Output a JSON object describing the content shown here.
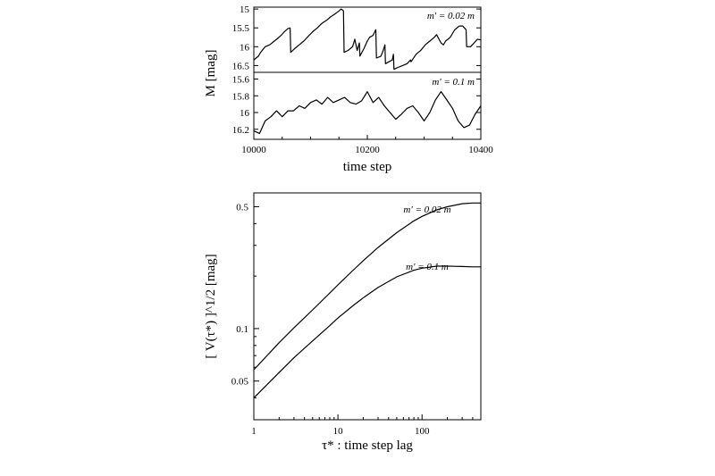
{
  "chart_data": [
    {
      "type": "line",
      "panel": "top-upper",
      "annotation": {
        "text": "m' = 0.02 m"
      },
      "ylabel": "M [mag]",
      "y_inverted": true,
      "xlim": [
        10000,
        10400
      ],
      "ylim": [
        16.68,
        14.95
      ],
      "yticks": [
        "15",
        "15.5",
        "16",
        "16.5"
      ],
      "series": [
        {
          "x": [
            10000,
            10008,
            10012,
            10020,
            10028,
            10036,
            10042,
            10048,
            10054,
            10060,
            10064,
            10065,
            10072,
            10080,
            10088,
            10096,
            10104,
            10112,
            10120,
            10128,
            10136,
            10144,
            10150,
            10154,
            10158,
            10159,
            10166,
            10174,
            10178,
            10182,
            10186,
            10187,
            10194,
            10200,
            10204,
            10210,
            10215,
            10216,
            10224,
            10228,
            10231,
            10232,
            10238,
            10244,
            10246,
            10247,
            10254,
            10262,
            10270,
            10276,
            10277,
            10286,
            10294,
            10302,
            10310,
            10318,
            10322,
            10330,
            10334,
            10338,
            10346,
            10350,
            10354,
            10362,
            10368,
            10374,
            10375,
            10382,
            10388,
            10394,
            10400
          ],
          "values": [
            16.35,
            16.25,
            16.15,
            16.0,
            15.95,
            15.85,
            15.78,
            15.7,
            15.6,
            15.52,
            15.5,
            16.15,
            16.05,
            15.95,
            15.85,
            15.72,
            15.6,
            15.5,
            15.38,
            15.3,
            15.2,
            15.12,
            15.05,
            15.0,
            15.05,
            16.15,
            16.1,
            16.0,
            15.8,
            16.1,
            15.9,
            16.25,
            16.05,
            15.85,
            15.75,
            15.7,
            15.55,
            16.3,
            16.25,
            16.1,
            15.95,
            16.45,
            16.4,
            16.35,
            16.2,
            16.6,
            16.55,
            16.5,
            16.45,
            16.35,
            16.4,
            16.2,
            16.1,
            15.95,
            15.85,
            15.75,
            15.68,
            15.9,
            15.95,
            15.85,
            15.75,
            15.65,
            15.55,
            15.45,
            15.45,
            15.55,
            16.0,
            16.0,
            15.9,
            15.8,
            15.82
          ]
        }
      ]
    },
    {
      "type": "line",
      "panel": "top-lower",
      "annotation": {
        "text": "m' = 0.1 m"
      },
      "xlabel": "time step",
      "y_inverted": true,
      "xlim": [
        10000,
        10400
      ],
      "ylim": [
        16.32,
        15.52
      ],
      "yticks": [
        "15.6",
        "15.8",
        "16",
        "16.2"
      ],
      "xticks": [
        "10000",
        "10200",
        "10400"
      ],
      "series": [
        {
          "x": [
            10000,
            10010,
            10020,
            10030,
            10040,
            10050,
            10060,
            10070,
            10080,
            10090,
            10100,
            10110,
            10120,
            10130,
            10140,
            10150,
            10160,
            10170,
            10180,
            10190,
            10200,
            10210,
            10220,
            10230,
            10240,
            10250,
            10260,
            10270,
            10280,
            10290,
            10300,
            10310,
            10320,
            10330,
            10340,
            10350,
            10360,
            10370,
            10380,
            10390,
            10400
          ],
          "values": [
            16.22,
            16.25,
            16.1,
            16.05,
            15.98,
            16.05,
            15.98,
            15.98,
            15.92,
            15.95,
            15.88,
            15.85,
            15.9,
            15.82,
            15.88,
            15.85,
            15.82,
            15.88,
            15.9,
            15.86,
            15.75,
            15.88,
            15.82,
            15.92,
            16.0,
            16.08,
            16.02,
            15.95,
            15.92,
            16.0,
            16.1,
            16.0,
            15.85,
            15.75,
            15.85,
            15.95,
            16.1,
            16.18,
            16.15,
            16.02,
            15.92
          ]
        }
      ]
    },
    {
      "type": "line",
      "panel": "bottom",
      "xscale": "log",
      "yscale": "log",
      "xlabel": "τ* : time step lag",
      "ylabel": "[ V(τ*) ]^1/2 [mag]",
      "xlim": [
        1,
        500
      ],
      "ylim": [
        0.03,
        0.6
      ],
      "xticks": [
        "1",
        "10",
        "100"
      ],
      "yticks": [
        "0.05",
        "0.1",
        "0.5"
      ],
      "series": [
        {
          "name": "m' = 0.02 m",
          "x": [
            1,
            2,
            3,
            5,
            8,
            10,
            15,
            20,
            30,
            50,
            80,
            100,
            150,
            200,
            300,
            400,
            500
          ],
          "values": [
            0.058,
            0.083,
            0.101,
            0.128,
            0.16,
            0.178,
            0.215,
            0.245,
            0.292,
            0.355,
            0.415,
            0.44,
            0.48,
            0.5,
            0.52,
            0.525,
            0.525
          ]
        },
        {
          "name": "m' = 0.1 m",
          "x": [
            1,
            2,
            3,
            5,
            8,
            10,
            15,
            20,
            30,
            50,
            80,
            100,
            150,
            200,
            300,
            400,
            500
          ],
          "values": [
            0.04,
            0.056,
            0.068,
            0.085,
            0.104,
            0.115,
            0.135,
            0.15,
            0.172,
            0.198,
            0.216,
            0.222,
            0.228,
            0.228,
            0.227,
            0.226,
            0.226
          ]
        }
      ]
    }
  ]
}
